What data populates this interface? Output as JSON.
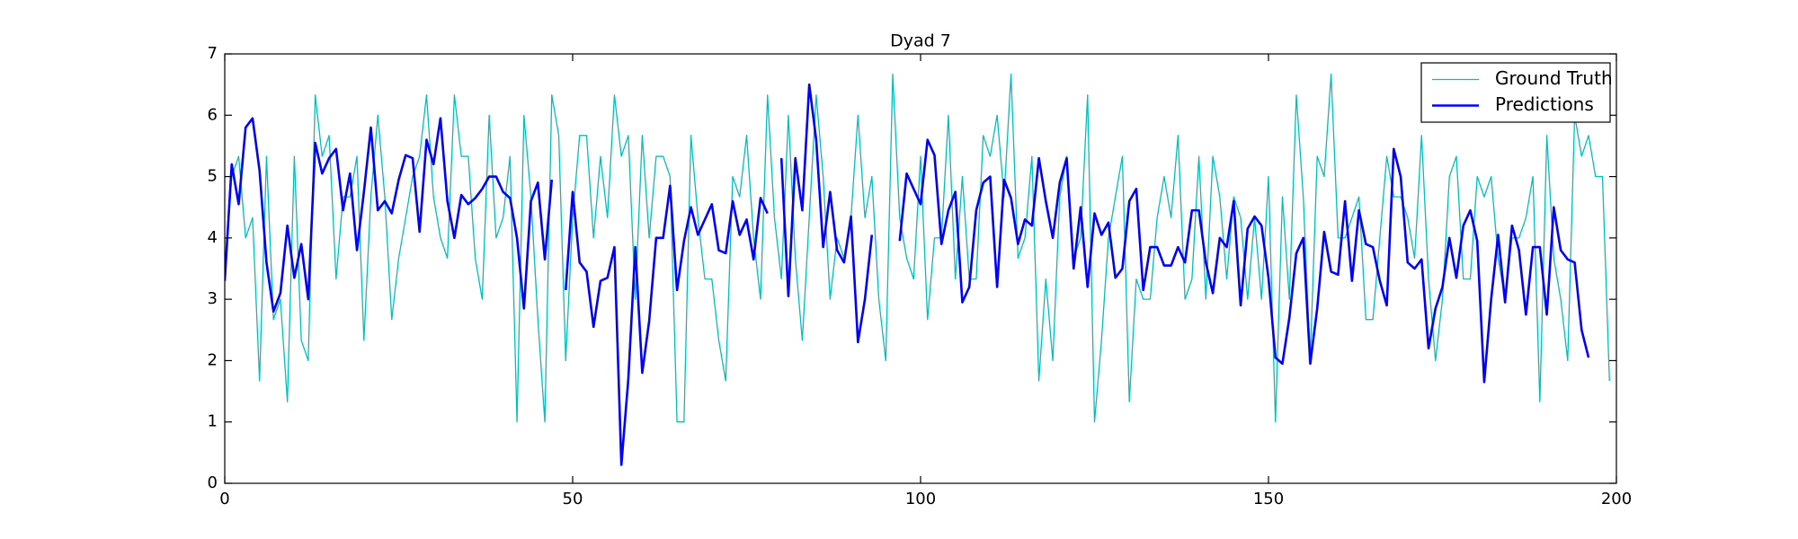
{
  "chart_data": {
    "type": "line",
    "title": "Dyad 7",
    "x": [
      0,
      1,
      2,
      3,
      4,
      5,
      6,
      7,
      8,
      9,
      10,
      11,
      12,
      13,
      14,
      15,
      16,
      17,
      18,
      19,
      20,
      21,
      22,
      23,
      24,
      25,
      26,
      27,
      28,
      29,
      30,
      31,
      32,
      33,
      34,
      35,
      36,
      37,
      38,
      39,
      40,
      41,
      42,
      43,
      44,
      45,
      46,
      47,
      48,
      49,
      50,
      51,
      52,
      53,
      54,
      55,
      56,
      57,
      58,
      59,
      60,
      61,
      62,
      63,
      64,
      65,
      66,
      67,
      68,
      69,
      70,
      71,
      72,
      73,
      74,
      75,
      76,
      77,
      78,
      79,
      80,
      81,
      82,
      83,
      84,
      85,
      86,
      87,
      88,
      89,
      90,
      91,
      92,
      93,
      94,
      95,
      96,
      97,
      98,
      99,
      100,
      101,
      102,
      103,
      104,
      105,
      106,
      107,
      108,
      109,
      110,
      111,
      112,
      113,
      114,
      115,
      116,
      117,
      118,
      119,
      120,
      121,
      122,
      123,
      124,
      125,
      126,
      127,
      128,
      129,
      130,
      131,
      132,
      133,
      134,
      135,
      136,
      137,
      138,
      139,
      140,
      141,
      142,
      143,
      144,
      145,
      146,
      147,
      148,
      149,
      150,
      151,
      152,
      153,
      154,
      155,
      156,
      157,
      158,
      159,
      160,
      161,
      162,
      163,
      164,
      165,
      166,
      167,
      168,
      169,
      170,
      171,
      172,
      173,
      174,
      175,
      176,
      177,
      178,
      179,
      180,
      181,
      182,
      183,
      184,
      185,
      186,
      187,
      188,
      189,
      190,
      191,
      192,
      193,
      194,
      195,
      196,
      197,
      198,
      199
    ],
    "series": [
      {
        "name": "Ground Truth",
        "color": "#00bfbf",
        "width": 1.3,
        "values": [
          3.33,
          5.0,
          5.33,
          4.0,
          4.33,
          1.67,
          5.33,
          2.67,
          3.0,
          1.33,
          5.33,
          2.33,
          2.0,
          6.33,
          5.33,
          5.67,
          3.33,
          4.67,
          4.67,
          5.33,
          2.33,
          4.67,
          6.0,
          4.67,
          2.67,
          3.67,
          4.33,
          5.0,
          5.33,
          6.33,
          4.67,
          4.0,
          3.67,
          6.33,
          5.33,
          5.33,
          3.67,
          3.0,
          6.0,
          4.0,
          4.33,
          5.33,
          1.0,
          6.0,
          4.67,
          2.67,
          1.0,
          6.33,
          5.67,
          2.0,
          4.33,
          5.67,
          5.67,
          4.0,
          5.33,
          4.33,
          6.33,
          5.33,
          5.67,
          3.0,
          5.67,
          4.0,
          5.33,
          5.33,
          5.0,
          1.0,
          1.0,
          5.67,
          4.33,
          3.33,
          3.33,
          2.33,
          1.67,
          5.0,
          4.67,
          5.67,
          4.0,
          3.0,
          6.33,
          4.33,
          3.33,
          6.0,
          3.67,
          2.33,
          4.33,
          6.33,
          5.0,
          3.0,
          4.0,
          3.67,
          4.33,
          6.0,
          4.33,
          5.0,
          3.0,
          2.0,
          6.67,
          4.33,
          3.67,
          3.33,
          5.33,
          2.67,
          4.0,
          4.0,
          6.0,
          3.33,
          5.0,
          3.33,
          3.33,
          5.67,
          5.33,
          6.0,
          4.67,
          6.67,
          3.67,
          4.0,
          5.33,
          1.67,
          3.33,
          2.0,
          4.67,
          5.33,
          3.67,
          4.0,
          6.33,
          1.0,
          2.33,
          4.0,
          4.67,
          5.33,
          1.33,
          3.33,
          3.0,
          3.0,
          4.33,
          5.0,
          4.33,
          5.67,
          3.0,
          3.33,
          5.33,
          3.0,
          5.33,
          4.67,
          3.33,
          4.67,
          4.33,
          3.0,
          4.33,
          3.0,
          5.0,
          1.0,
          4.67,
          3.0,
          6.33,
          4.67,
          2.0,
          5.33,
          5.0,
          6.67,
          4.0,
          4.0,
          4.33,
          4.67,
          2.67,
          2.67,
          4.0,
          5.33,
          4.67,
          4.67,
          4.33,
          3.67,
          5.67,
          3.33,
          2.0,
          3.0,
          5.0,
          5.33,
          3.33,
          3.33,
          5.0,
          4.67,
          5.0,
          3.67,
          3.0,
          4.0,
          4.0,
          4.33,
          5.0,
          1.33,
          5.67,
          3.67,
          3.0,
          2.0,
          6.0,
          5.33,
          5.67,
          5.0,
          5.0,
          1.67
        ]
      },
      {
        "name": "Predictions",
        "color": "#0000ff",
        "width": 2.6,
        "values": [
          3.3,
          5.2,
          4.55,
          5.8,
          5.95,
          5.1,
          3.6,
          2.8,
          3.1,
          4.2,
          3.35,
          3.9,
          3.0,
          5.55,
          5.05,
          5.3,
          5.45,
          4.45,
          5.05,
          3.8,
          4.75,
          5.8,
          4.45,
          4.6,
          4.4,
          4.95,
          5.35,
          5.3,
          4.1,
          5.6,
          5.2,
          5.95,
          4.6,
          4.0,
          4.7,
          4.55,
          4.65,
          4.8,
          5.0,
          5.0,
          4.75,
          4.65,
          4.0,
          2.85,
          4.6,
          4.9,
          3.65,
          4.95,
          null,
          3.15,
          4.75,
          3.6,
          3.45,
          2.55,
          3.3,
          3.35,
          3.85,
          0.3,
          1.7,
          3.85,
          1.8,
          2.65,
          4.0,
          4.0,
          4.85,
          3.15,
          3.95,
          4.5,
          4.05,
          4.3,
          4.55,
          3.8,
          3.75,
          4.6,
          4.05,
          4.3,
          3.65,
          4.65,
          4.4,
          null,
          5.3,
          3.05,
          5.3,
          4.45,
          6.5,
          5.6,
          3.85,
          4.75,
          3.8,
          3.6,
          4.35,
          2.3,
          3.0,
          4.05,
          null,
          null,
          null,
          3.95,
          5.05,
          4.8,
          4.55,
          5.6,
          5.35,
          3.9,
          4.45,
          4.75,
          2.95,
          3.2,
          4.45,
          4.9,
          5.0,
          3.2,
          4.95,
          4.65,
          3.9,
          4.3,
          4.2,
          5.3,
          4.6,
          4.0,
          4.9,
          5.3,
          3.5,
          4.5,
          3.2,
          4.4,
          4.05,
          4.25,
          3.35,
          3.5,
          4.6,
          4.8,
          3.15,
          3.85,
          3.85,
          3.55,
          3.55,
          3.85,
          3.6,
          4.45,
          4.45,
          3.6,
          3.1,
          4.0,
          3.85,
          4.6,
          2.9,
          4.15,
          4.35,
          4.2,
          3.35,
          2.05,
          1.95,
          2.7,
          3.75,
          4.0,
          1.95,
          2.85,
          4.1,
          3.45,
          3.4,
          4.6,
          3.3,
          4.45,
          3.9,
          3.85,
          3.3,
          2.9,
          5.45,
          5.0,
          3.6,
          3.5,
          3.65,
          2.2,
          2.85,
          3.2,
          4.0,
          3.35,
          4.2,
          4.45,
          3.95,
          1.65,
          3.0,
          4.05,
          2.95,
          4.2,
          3.8,
          2.75,
          3.85,
          3.85,
          2.75,
          4.5,
          3.8,
          3.65,
          3.6,
          2.5,
          2.05,
          null,
          null,
          null
        ]
      }
    ],
    "xlim": [
      0,
      200
    ],
    "ylim": [
      0,
      7
    ],
    "xticks": [
      0,
      50,
      100,
      150,
      200
    ],
    "yticks": [
      0,
      1,
      2,
      3,
      4,
      5,
      6,
      7
    ],
    "legend": "upper right"
  }
}
